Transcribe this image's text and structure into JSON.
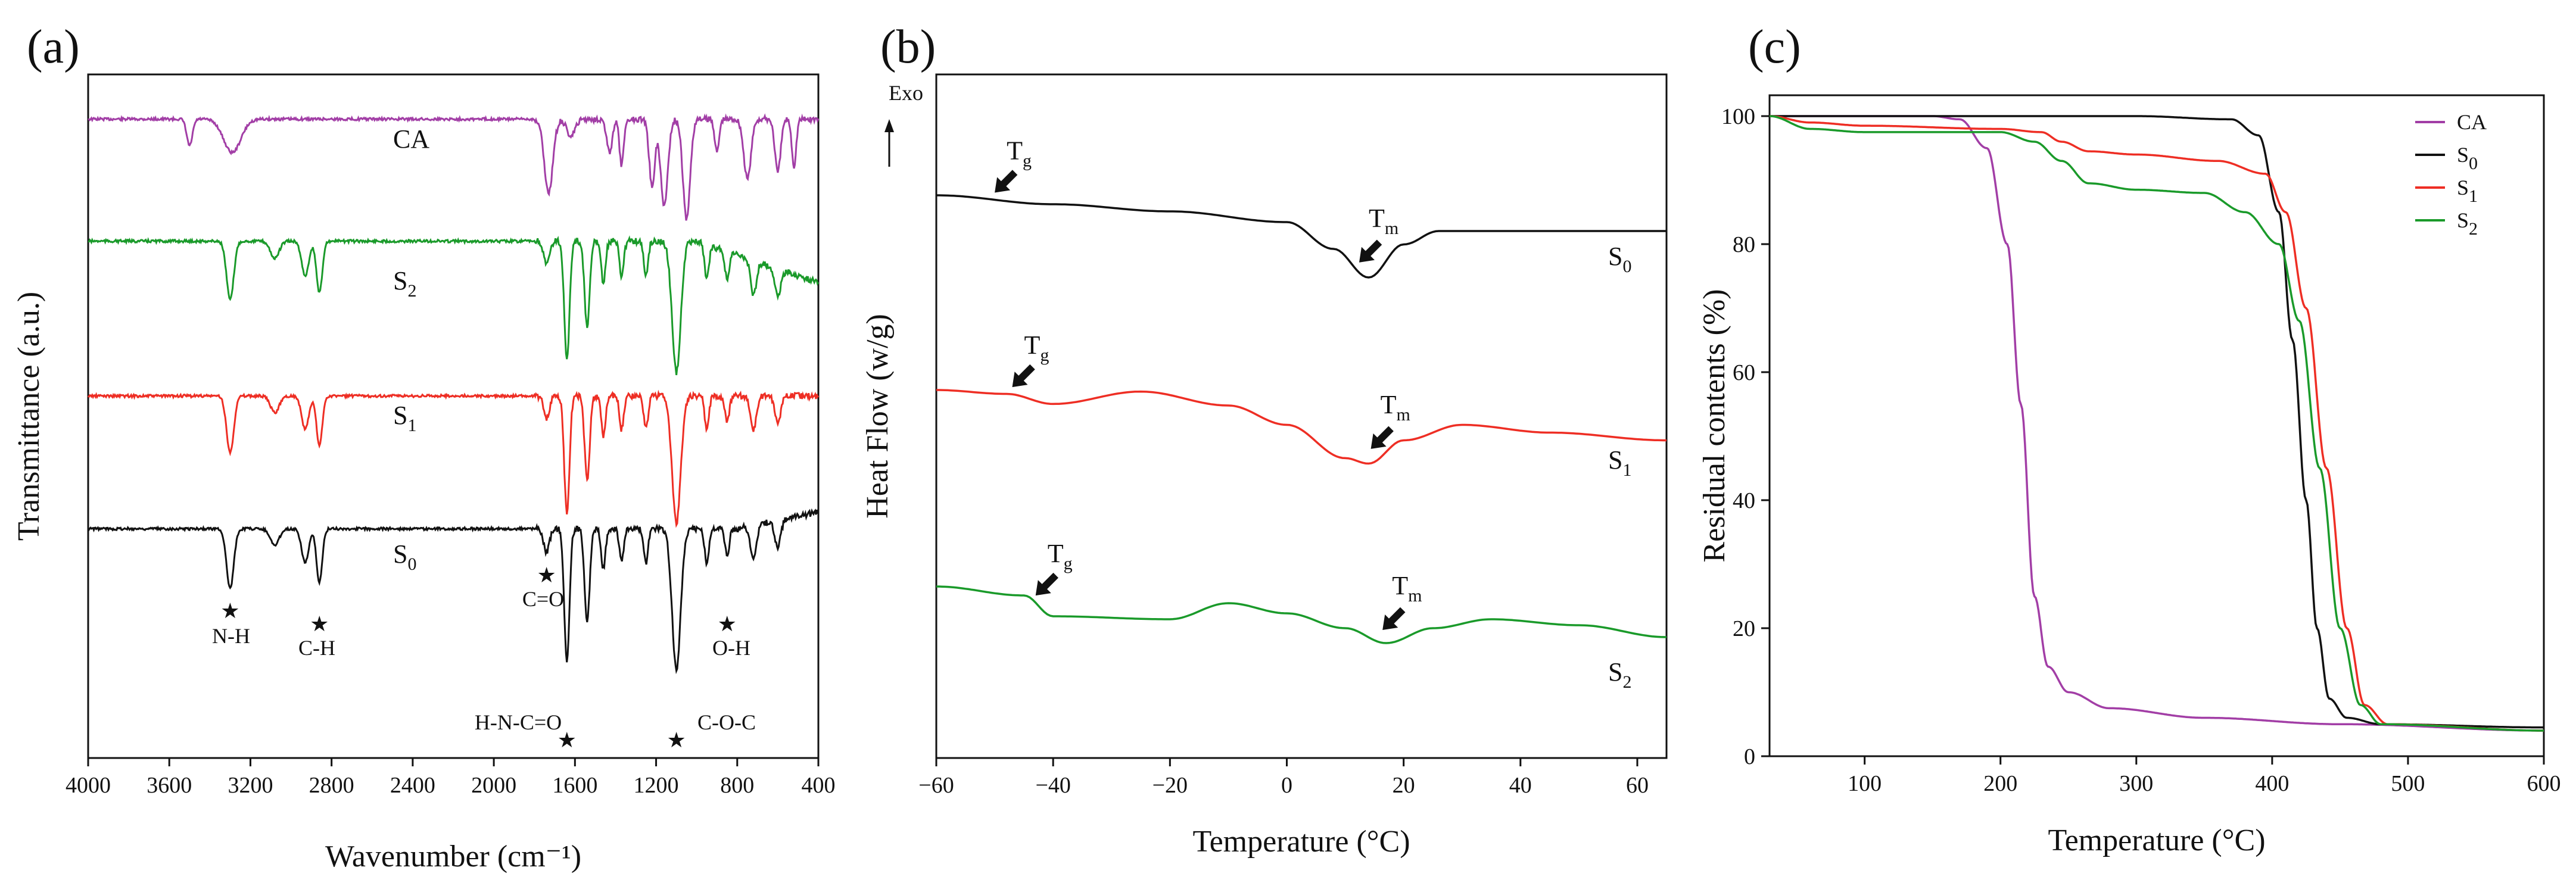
{
  "chart_data": [
    {
      "panel": "(a)",
      "type": "line",
      "xlabel": "Wavenumber (cm⁻¹)",
      "ylabel": "Transmittance (a.u.)",
      "xlim": [
        4000,
        400
      ],
      "x_reversed": true,
      "xticks": [
        "4000",
        "3600",
        "3200",
        "2800",
        "2400",
        "2000",
        "1600",
        "1200",
        "800",
        "400"
      ],
      "yticks_shown": false,
      "series": [
        {
          "name": "CA",
          "subscript": "",
          "color": "#a23ea6",
          "label": "CA",
          "offset": 0,
          "peaks": [
            [
              3500,
              0.08,
              20
            ],
            [
              3290,
              0.1,
              60
            ],
            [
              1730,
              0.22,
              30
            ],
            [
              1620,
              0.05,
              30
            ],
            [
              1430,
              0.1,
              20
            ],
            [
              1370,
              0.14,
              15
            ],
            [
              1220,
              0.2,
              20
            ],
            [
              1160,
              0.26,
              25
            ],
            [
              1050,
              0.3,
              25
            ],
            [
              900,
              0.1,
              15
            ],
            [
              750,
              0.18,
              25
            ],
            [
              600,
              0.16,
              20
            ],
            [
              520,
              0.14,
              15
            ]
          ]
        },
        {
          "name": "S2",
          "subscript": "2",
          "color": "#1a9a2a",
          "label": "S",
          "offset": 1,
          "peaks": [
            [
              3300,
              0.17,
              25
            ],
            [
              3080,
              0.05,
              30
            ],
            [
              2930,
              0.1,
              25
            ],
            [
              2860,
              0.15,
              20
            ],
            [
              1740,
              0.07,
              20
            ],
            [
              1640,
              0.35,
              18
            ],
            [
              1540,
              0.25,
              18
            ],
            [
              1460,
              0.12,
              15
            ],
            [
              1370,
              0.1,
              15
            ],
            [
              1250,
              0.1,
              15
            ],
            [
              1100,
              0.38,
              30
            ],
            [
              950,
              0.1,
              15
            ],
            [
              850,
              0.08,
              15
            ],
            [
              720,
              0.1,
              20
            ],
            [
              600,
              0.08,
              20
            ]
          ]
        },
        {
          "name": "S1",
          "subscript": "1",
          "color": "#ee2e24",
          "label": "S",
          "offset": 2,
          "peaks": [
            [
              3300,
              0.17,
              25
            ],
            [
              3080,
              0.05,
              30
            ],
            [
              2930,
              0.1,
              25
            ],
            [
              2860,
              0.15,
              20
            ],
            [
              1740,
              0.07,
              20
            ],
            [
              1640,
              0.35,
              18
            ],
            [
              1540,
              0.25,
              18
            ],
            [
              1460,
              0.12,
              15
            ],
            [
              1370,
              0.1,
              15
            ],
            [
              1250,
              0.1,
              15
            ],
            [
              1100,
              0.38,
              30
            ],
            [
              950,
              0.1,
              15
            ],
            [
              850,
              0.08,
              15
            ],
            [
              720,
              0.1,
              20
            ],
            [
              600,
              0.08,
              20
            ]
          ]
        },
        {
          "name": "S0",
          "subscript": "0",
          "color": "#111111",
          "label": "S",
          "offset": 3,
          "peaks": [
            [
              3300,
              0.18,
              25
            ],
            [
              3080,
              0.05,
              30
            ],
            [
              2930,
              0.1,
              25
            ],
            [
              2860,
              0.16,
              20
            ],
            [
              1740,
              0.07,
              20
            ],
            [
              1640,
              0.4,
              18
            ],
            [
              1540,
              0.28,
              18
            ],
            [
              1460,
              0.12,
              15
            ],
            [
              1370,
              0.1,
              15
            ],
            [
              1250,
              0.1,
              15
            ],
            [
              1100,
              0.42,
              30
            ],
            [
              950,
              0.1,
              15
            ],
            [
              850,
              0.08,
              15
            ],
            [
              720,
              0.1,
              20
            ],
            [
              600,
              0.08,
              20
            ]
          ]
        }
      ],
      "annotations": [
        {
          "text": "N-H",
          "x": 3300,
          "marker": "★"
        },
        {
          "text": "C-H",
          "x": 2860,
          "marker": "★"
        },
        {
          "text": "C=O",
          "x": 1740,
          "marker": "★"
        },
        {
          "text": "H-N-C=O",
          "x": 1640,
          "marker": "★"
        },
        {
          "text": "C-O-C",
          "x": 1100,
          "marker": "★"
        },
        {
          "text": "O-H",
          "x": 850,
          "marker": "★"
        }
      ]
    },
    {
      "panel": "(b)",
      "type": "line",
      "xlabel": "Temperature (°C)",
      "ylabel": "Heat Flow (w/g)",
      "xlim": [
        -60,
        65
      ],
      "xticks": [
        -60,
        -40,
        -20,
        0,
        20,
        40,
        60
      ],
      "xtick_labels": [
        "−60",
        "−40",
        "−20",
        "0",
        "20",
        "40",
        "60"
      ],
      "exo_label": "Exo",
      "series": [
        {
          "name": "S0",
          "subscript": "0",
          "color": "#111111",
          "label": "S",
          "points": [
            [
              -60,
              0.0
            ],
            [
              -40,
              0.1
            ],
            [
              -20,
              0.18
            ],
            [
              0,
              0.3
            ],
            [
              8,
              0.6
            ],
            [
              14,
              0.92
            ],
            [
              20,
              0.55
            ],
            [
              26,
              0.4
            ],
            [
              40,
              0.4
            ],
            [
              65,
              0.4
            ]
          ],
          "tg": -50,
          "tm": 13
        },
        {
          "name": "S1",
          "subscript": "1",
          "color": "#ee2e24",
          "label": "S",
          "points": [
            [
              -60,
              0.0
            ],
            [
              -48,
              0.05
            ],
            [
              -40,
              0.18
            ],
            [
              -25,
              0.02
            ],
            [
              -10,
              0.2
            ],
            [
              0,
              0.45
            ],
            [
              10,
              0.88
            ],
            [
              14,
              0.95
            ],
            [
              20,
              0.65
            ],
            [
              30,
              0.45
            ],
            [
              45,
              0.55
            ],
            [
              65,
              0.65
            ]
          ],
          "tg": -47,
          "tm": 15
        },
        {
          "name": "S2",
          "subscript": "2",
          "color": "#1a9a2a",
          "label": "S",
          "points": [
            [
              -60,
              0.0
            ],
            [
              -45,
              0.15
            ],
            [
              -40,
              0.5
            ],
            [
              -20,
              0.55
            ],
            [
              -10,
              0.28
            ],
            [
              0,
              0.45
            ],
            [
              10,
              0.7
            ],
            [
              17,
              0.95
            ],
            [
              25,
              0.7
            ],
            [
              35,
              0.55
            ],
            [
              50,
              0.65
            ],
            [
              65,
              0.85
            ]
          ],
          "tg": -43,
          "tm": 17
        }
      ],
      "annotation_tg": "T",
      "annotation_tg_sub": "g",
      "annotation_tm": "T",
      "annotation_tm_sub": "m"
    },
    {
      "panel": "(c)",
      "type": "line",
      "xlabel": "Temperature (°C)",
      "ylabel": "Residual contents (%)",
      "xlim": [
        30,
        600
      ],
      "ylim": [
        0,
        100
      ],
      "xticks": [
        100,
        200,
        300,
        400,
        500,
        600
      ],
      "yticks": [
        0,
        20,
        40,
        60,
        80,
        100
      ],
      "legend_position": "top-right",
      "series": [
        {
          "name": "CA",
          "label": "CA",
          "subscript": "",
          "color": "#a23ea6",
          "points": [
            [
              30,
              100
            ],
            [
              150,
              100
            ],
            [
              170,
              99.5
            ],
            [
              190,
              95
            ],
            [
              205,
              80
            ],
            [
              215,
              55
            ],
            [
              225,
              25
            ],
            [
              235,
              14
            ],
            [
              250,
              10
            ],
            [
              280,
              7.5
            ],
            [
              350,
              6
            ],
            [
              450,
              5
            ],
            [
              600,
              4
            ]
          ]
        },
        {
          "name": "S0",
          "label": "S",
          "subscript": "0",
          "color": "#111111",
          "points": [
            [
              30,
              100
            ],
            [
              300,
              100
            ],
            [
              370,
              99.5
            ],
            [
              390,
              97
            ],
            [
              405,
              85
            ],
            [
              415,
              65
            ],
            [
              425,
              40
            ],
            [
              433,
              20
            ],
            [
              442,
              9
            ],
            [
              455,
              6
            ],
            [
              480,
              5
            ],
            [
              600,
              4.5
            ]
          ]
        },
        {
          "name": "S1",
          "label": "S",
          "subscript": "1",
          "color": "#ee2e24",
          "points": [
            [
              30,
              100
            ],
            [
              60,
              99
            ],
            [
              100,
              98.5
            ],
            [
              200,
              98
            ],
            [
              230,
              97.5
            ],
            [
              245,
              96
            ],
            [
              265,
              94.5
            ],
            [
              300,
              94
            ],
            [
              360,
              93
            ],
            [
              395,
              91
            ],
            [
              410,
              85
            ],
            [
              425,
              70
            ],
            [
              440,
              45
            ],
            [
              455,
              20
            ],
            [
              468,
              8
            ],
            [
              485,
              5
            ],
            [
              600,
              4
            ]
          ]
        },
        {
          "name": "S2",
          "label": "S",
          "subscript": "2",
          "color": "#1a9a2a",
          "points": [
            [
              30,
              100
            ],
            [
              60,
              98
            ],
            [
              100,
              97.5
            ],
            [
              200,
              97.5
            ],
            [
              225,
              96
            ],
            [
              245,
              93
            ],
            [
              265,
              89.5
            ],
            [
              300,
              88.5
            ],
            [
              350,
              88
            ],
            [
              380,
              85
            ],
            [
              405,
              80
            ],
            [
              420,
              68
            ],
            [
              435,
              45
            ],
            [
              450,
              20
            ],
            [
              465,
              8
            ],
            [
              480,
              5
            ],
            [
              600,
              4
            ]
          ]
        }
      ]
    }
  ]
}
